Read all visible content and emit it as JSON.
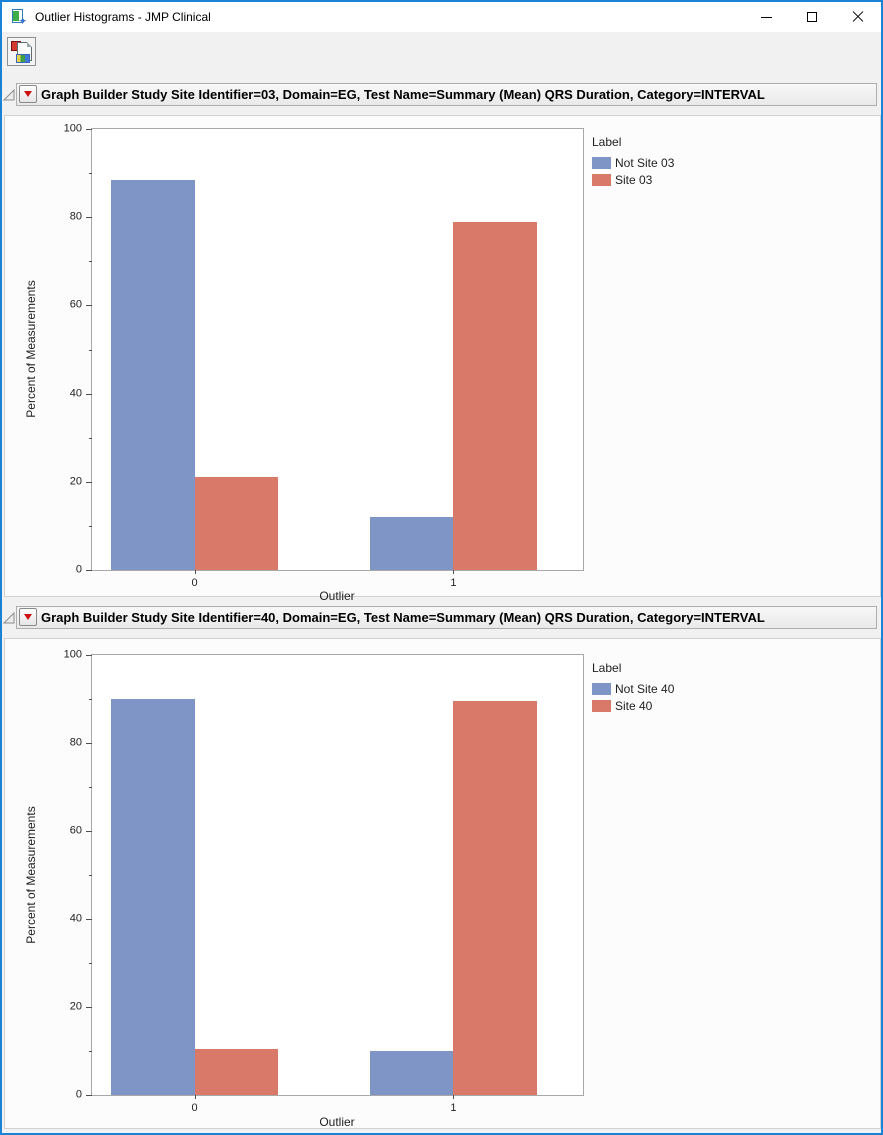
{
  "window": {
    "title": "Outlier Histograms - JMP Clinical"
  },
  "icons": {
    "app": "jmp-clinical-report-icon",
    "toolbar_button": "save-report-picture-icon",
    "disclosure": "open-disclosure-triangle-icon",
    "red_triangle": "red-triangle-menu-icon"
  },
  "sections": [
    {
      "header": "Graph Builder Study Site Identifier=03, Domain=EG, Test Name=Summary (Mean) QRS Duration, Category=INTERVAL"
    },
    {
      "header": "Graph Builder Study Site Identifier=40, Domain=EG, Test Name=Summary (Mean) QRS Duration, Category=INTERVAL"
    }
  ],
  "chart_data": [
    {
      "type": "bar",
      "categories": [
        "0",
        "1"
      ],
      "series": [
        {
          "name": "Not Site 03",
          "color": "#7F95C6",
          "values": [
            88.5,
            12
          ]
        },
        {
          "name": "Site 03",
          "color": "#D8796A",
          "values": [
            21,
            79
          ]
        }
      ],
      "title": "",
      "xlabel": "Outlier",
      "ylabel": "Percent of Measurements",
      "ylim": [
        0,
        100
      ],
      "y_ticks": [
        0,
        20,
        40,
        60,
        80,
        100
      ],
      "legend_title": "Label",
      "legend_position": "right",
      "grid": false
    },
    {
      "type": "bar",
      "categories": [
        "0",
        "1"
      ],
      "series": [
        {
          "name": "Not Site 40",
          "color": "#7F95C6",
          "values": [
            90,
            10
          ]
        },
        {
          "name": "Site 40",
          "color": "#D8796A",
          "values": [
            10.5,
            89.5
          ]
        }
      ],
      "title": "",
      "xlabel": "Outlier",
      "ylabel": "Percent of Measurements",
      "ylim": [
        0,
        100
      ],
      "y_ticks": [
        0,
        20,
        40,
        60,
        80,
        100
      ],
      "legend_title": "Label",
      "legend_position": "right",
      "grid": false
    }
  ]
}
